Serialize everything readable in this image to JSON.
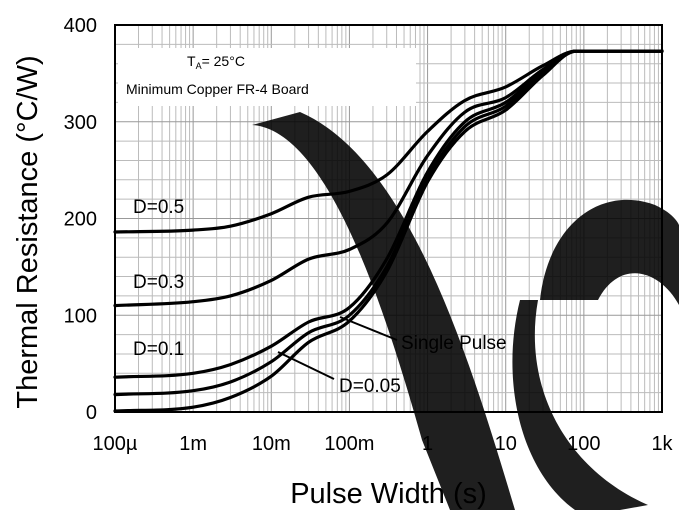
{
  "chart_data": {
    "type": "line",
    "title": "",
    "xlabel": "Pulse Width (s)",
    "ylabel": "Thermal Resistance (°C/W)",
    "x_scale": "log",
    "xlim": [
      0.0001,
      1000
    ],
    "ylim": [
      0,
      400
    ],
    "grid": true,
    "x_ticks": [
      {
        "value": 0.0001,
        "label": "100µ"
      },
      {
        "value": 0.001,
        "label": "1m"
      },
      {
        "value": 0.01,
        "label": "10m"
      },
      {
        "value": 0.1,
        "label": "100m"
      },
      {
        "value": 1,
        "label": "1"
      },
      {
        "value": 10,
        "label": "10"
      },
      {
        "value": 100,
        "label": "100"
      },
      {
        "value": 1000,
        "label": "1k"
      }
    ],
    "y_ticks": [
      {
        "value": 0,
        "label": "0"
      },
      {
        "value": 100,
        "label": "100"
      },
      {
        "value": 200,
        "label": "200"
      },
      {
        "value": 300,
        "label": "300"
      },
      {
        "value": 400,
        "label": "400"
      }
    ],
    "conditions": {
      "ta_label": "T",
      "ta_sub": "A",
      "ta_value": "= 25°C",
      "board": "Minimum Copper FR-4 Board"
    },
    "series": [
      {
        "name": "D=0.5",
        "x": [
          0.0001,
          0.001,
          0.003,
          0.01,
          0.03,
          0.1,
          0.3,
          1,
          3,
          10,
          30,
          80,
          200,
          1000
        ],
        "y": [
          186,
          188,
          192,
          205,
          222,
          228,
          245,
          290,
          322,
          336,
          358,
          373,
          373,
          373
        ]
      },
      {
        "name": "D=0.3",
        "x": [
          0.0001,
          0.001,
          0.003,
          0.01,
          0.03,
          0.1,
          0.3,
          1,
          3,
          10,
          30,
          80,
          200,
          1000
        ],
        "y": [
          110,
          114,
          120,
          136,
          158,
          168,
          195,
          265,
          310,
          325,
          354,
          373,
          373,
          373
        ]
      },
      {
        "name": "D=0.1",
        "x": [
          0.0001,
          0.001,
          0.003,
          0.01,
          0.03,
          0.1,
          0.3,
          1,
          3,
          10,
          30,
          80,
          200,
          1000
        ],
        "y": [
          36,
          40,
          49,
          68,
          93,
          108,
          158,
          248,
          300,
          320,
          352,
          373,
          373,
          373
        ]
      },
      {
        "name": "D=0.05",
        "x": [
          0.0001,
          0.001,
          0.003,
          0.01,
          0.03,
          0.1,
          0.3,
          1,
          3,
          10,
          30,
          80,
          200,
          1000
        ],
        "y": [
          18,
          22,
          31,
          52,
          82,
          100,
          150,
          242,
          295,
          316,
          350,
          373,
          373,
          373
        ]
      },
      {
        "name": "Single Pulse",
        "x": [
          0.0001,
          0.001,
          0.003,
          0.01,
          0.03,
          0.1,
          0.3,
          1,
          3,
          10,
          30,
          80,
          200,
          1000
        ],
        "y": [
          1,
          5,
          15,
          37,
          72,
          94,
          145,
          238,
          290,
          312,
          348,
          373,
          373,
          373
        ]
      }
    ]
  }
}
